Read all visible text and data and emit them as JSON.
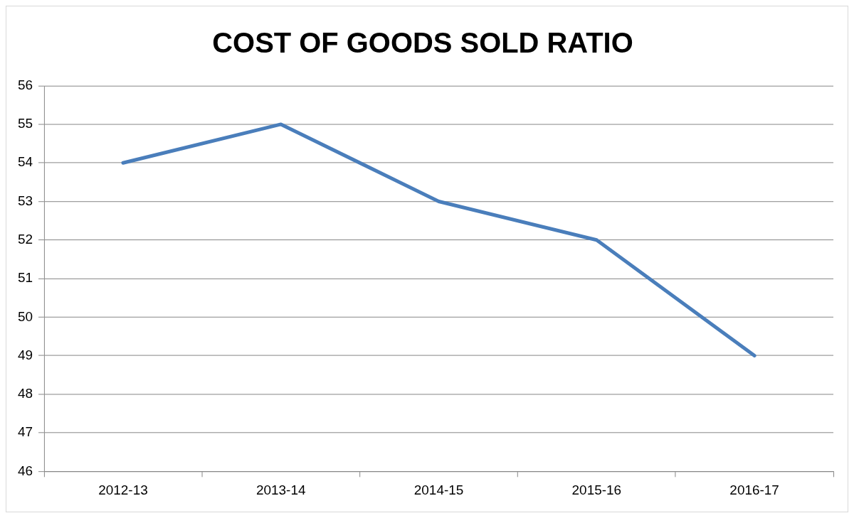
{
  "chart_data": {
    "type": "line",
    "title": "COST OF GOODS SOLD RATIO",
    "categories": [
      "2012-13",
      "2013-14",
      "2014-15",
      "2015-16",
      "2016-17"
    ],
    "series": [
      {
        "color": "#4a7ebb",
        "values": [
          54,
          55,
          53,
          52,
          49
        ]
      }
    ],
    "ylim": [
      46,
      56
    ],
    "yticks": [
      46,
      47,
      48,
      49,
      50,
      51,
      52,
      53,
      54,
      55,
      56
    ],
    "grid": "y",
    "legend": false,
    "marker": "none",
    "line_style": "solid"
  }
}
